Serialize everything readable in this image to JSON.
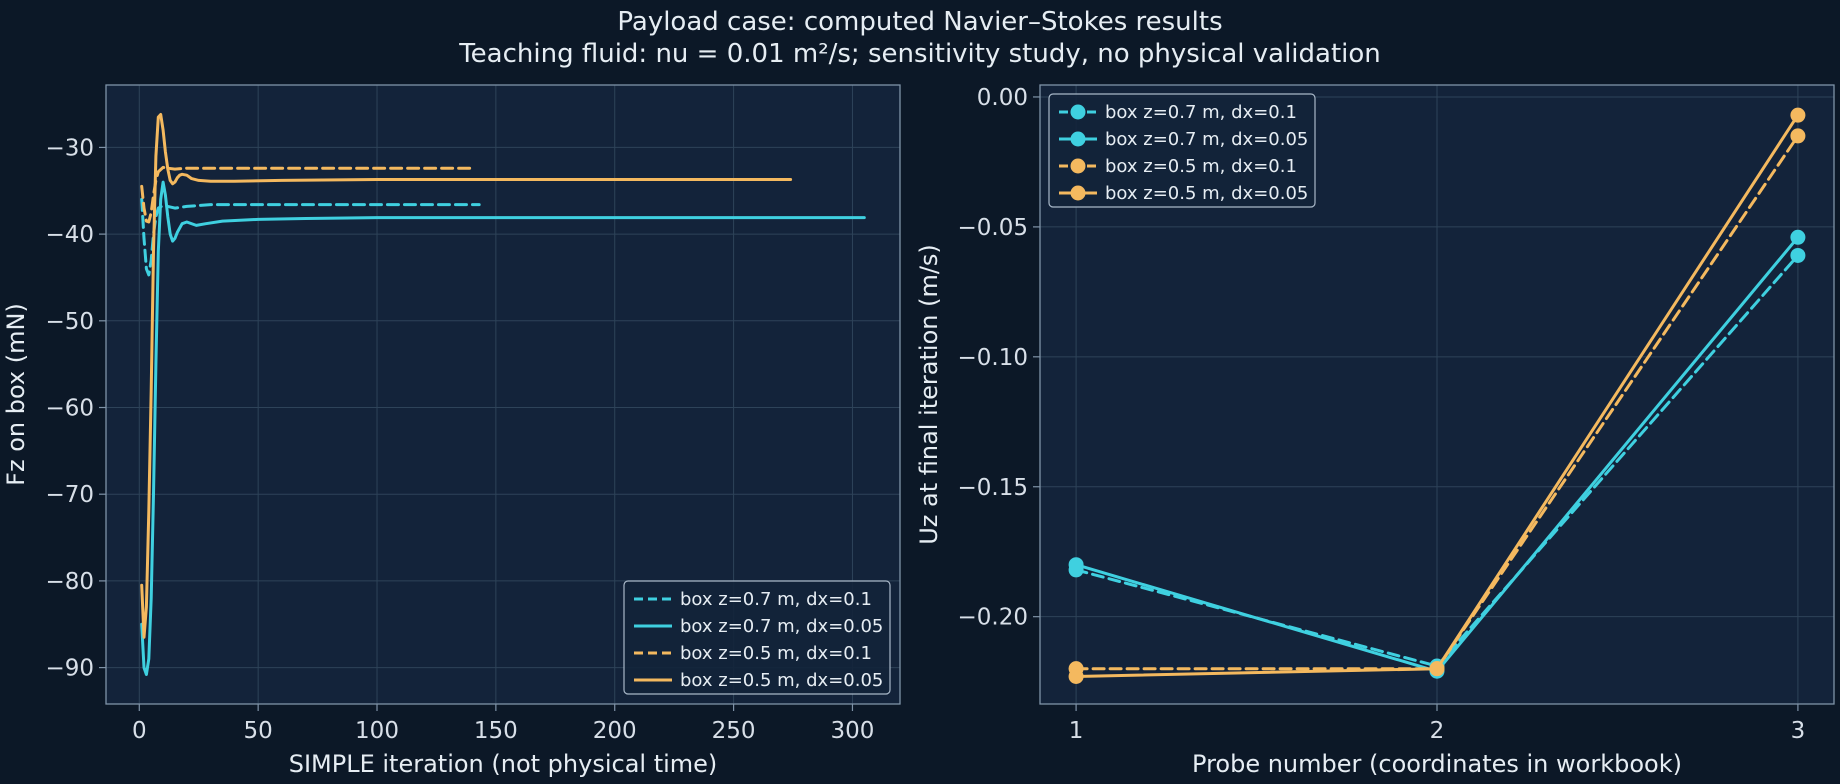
{
  "figure": {
    "title": "Payload case: computed Navier–Stokes results",
    "subtitle": "Teaching fluid: nu = 0.01 m²/s; sensitivity study, no physical validation"
  },
  "colors": {
    "background": "#0c1827",
    "axes_face": "#13233a",
    "spine": "#7f93a8",
    "grid": "#2e4359",
    "cyan": "#3fd0e0",
    "orange": "#f4b95f"
  },
  "chart_data": [
    {
      "type": "line",
      "xlabel": "SIMPLE iteration (not physical time)",
      "ylabel": "Fz on box (mN)",
      "xlim": [
        -14,
        320
      ],
      "ylim": [
        -94.2,
        -22.8
      ],
      "xticks": [
        0,
        50,
        100,
        150,
        200,
        250,
        300
      ],
      "yticks": [
        -90,
        -80,
        -70,
        -60,
        -50,
        -40,
        -30
      ],
      "grid": true,
      "legend_position": "lower-right",
      "series": [
        {
          "name": "box z=0.7 m, dx=0.1",
          "color": "#3fd0e0",
          "dash": true,
          "x": [
            1,
            2,
            3,
            4,
            5,
            6,
            7,
            8,
            10,
            12,
            15,
            20,
            30,
            40,
            60,
            80,
            100,
            143
          ],
          "y": [
            -36.0,
            -40.5,
            -44.0,
            -44.7,
            -43.0,
            -40.0,
            -38.0,
            -37.0,
            -36.7,
            -36.8,
            -37.0,
            -36.8,
            -36.6,
            -36.6,
            -36.6,
            -36.6,
            -36.6,
            -36.6
          ]
        },
        {
          "name": "box z=0.7 m, dx=0.05",
          "color": "#3fd0e0",
          "dash": false,
          "x": [
            1,
            2,
            3,
            4,
            5,
            6,
            7,
            8,
            9,
            10,
            11,
            12,
            13,
            14,
            15,
            16,
            18,
            20,
            24,
            28,
            35,
            50,
            70,
            100,
            150,
            200,
            250,
            305
          ],
          "y": [
            -85.0,
            -90.0,
            -90.8,
            -89.0,
            -82.0,
            -70.0,
            -55.0,
            -42.0,
            -36.0,
            -34.0,
            -35.5,
            -38.0,
            -40.0,
            -40.8,
            -40.5,
            -39.8,
            -38.8,
            -38.6,
            -39.0,
            -38.8,
            -38.5,
            -38.3,
            -38.2,
            -38.1,
            -38.1,
            -38.1,
            -38.1,
            -38.1
          ]
        },
        {
          "name": "box z=0.5 m, dx=0.1",
          "color": "#f4b95f",
          "dash": true,
          "x": [
            1,
            2,
            3,
            4,
            5,
            6,
            7,
            8,
            10,
            12,
            15,
            20,
            30,
            40,
            60,
            80,
            100,
            141
          ],
          "y": [
            -34.5,
            -37.0,
            -38.5,
            -38.6,
            -37.5,
            -35.5,
            -33.8,
            -32.8,
            -32.3,
            -32.4,
            -32.5,
            -32.4,
            -32.4,
            -32.4,
            -32.4,
            -32.4,
            -32.4,
            -32.4
          ]
        },
        {
          "name": "box z=0.5 m, dx=0.05",
          "color": "#f4b95f",
          "dash": false,
          "x": [
            1,
            2,
            3,
            4,
            5,
            6,
            7,
            8,
            9,
            10,
            11,
            12,
            13,
            14,
            15,
            16,
            17,
            18,
            20,
            22,
            25,
            30,
            40,
            60,
            100,
            150,
            200,
            250,
            274
          ],
          "y": [
            -80.5,
            -86.5,
            -83.0,
            -72.0,
            -58.0,
            -42.0,
            -31.0,
            -26.5,
            -26.2,
            -28.0,
            -30.5,
            -32.5,
            -33.8,
            -34.2,
            -34.0,
            -33.5,
            -33.2,
            -33.1,
            -33.2,
            -33.6,
            -33.8,
            -33.9,
            -33.9,
            -33.8,
            -33.7,
            -33.7,
            -33.7,
            -33.7,
            -33.7
          ]
        }
      ]
    },
    {
      "type": "line",
      "xlabel": "Probe number (coordinates in workbook)",
      "ylabel": "Uz at final iteration (m/s)",
      "xlim": [
        0.9,
        3.1
      ],
      "ylim": [
        -0.2336,
        0.0046
      ],
      "xticks": [
        1,
        2,
        3
      ],
      "yticks": [
        0.0,
        -0.05,
        -0.1,
        -0.15,
        -0.2
      ],
      "ytick_labels": [
        "0.00",
        "−0.05",
        "−0.10",
        "−0.15",
        "−0.20"
      ],
      "grid": true,
      "markers": true,
      "legend_position": "upper-left",
      "series": [
        {
          "name": "box z=0.7 m, dx=0.1",
          "color": "#3fd0e0",
          "dash": true,
          "x": [
            1,
            2,
            3
          ],
          "y": [
            -0.182,
            -0.219,
            -0.061
          ]
        },
        {
          "name": "box z=0.7 m, dx=0.05",
          "color": "#3fd0e0",
          "dash": false,
          "x": [
            1,
            2,
            3
          ],
          "y": [
            -0.18,
            -0.221,
            -0.054
          ]
        },
        {
          "name": "box z=0.5 m, dx=0.1",
          "color": "#f4b95f",
          "dash": true,
          "x": [
            1,
            2,
            3
          ],
          "y": [
            -0.22,
            -0.22,
            -0.015
          ]
        },
        {
          "name": "box z=0.5 m, dx=0.05",
          "color": "#f4b95f",
          "dash": false,
          "x": [
            1,
            2,
            3
          ],
          "y": [
            -0.223,
            -0.22,
            -0.007
          ]
        }
      ]
    }
  ]
}
